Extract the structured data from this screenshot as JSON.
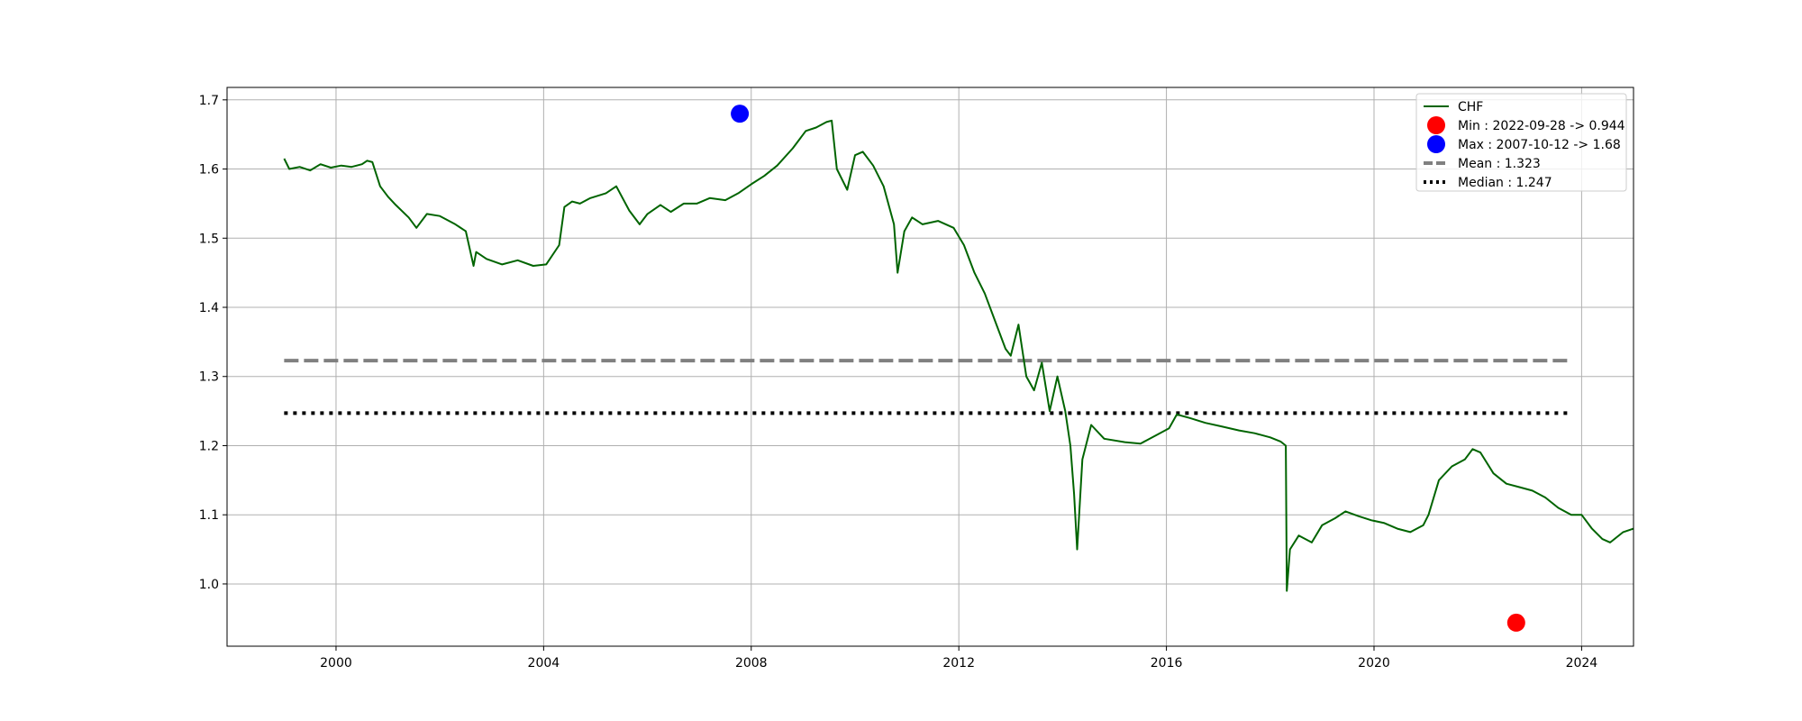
{
  "chart_data": {
    "type": "line",
    "title": "",
    "xlabel": "",
    "ylabel": "",
    "xlim": [
      1997.9,
      2025.0
    ],
    "ylim": [
      0.91,
      1.718
    ],
    "grid": true,
    "legend_position": "top-right",
    "x_ticks": [
      2000,
      2004,
      2008,
      2012,
      2016,
      2020,
      2024
    ],
    "y_ticks": [
      1.0,
      1.1,
      1.2,
      1.3,
      1.4,
      1.5,
      1.6,
      1.7
    ],
    "x_tick_labels": [
      "2000",
      "2004",
      "2008",
      "2012",
      "2016",
      "2020",
      "2024"
    ],
    "y_tick_labels": [
      "1.0",
      "1.1",
      "1.2",
      "1.3",
      "1.4",
      "1.5",
      "1.6",
      "1.7"
    ],
    "series": [
      {
        "name": "CHF",
        "color": "#006400",
        "points": [
          [
            1999.0,
            1.615
          ],
          [
            1999.1,
            1.6
          ],
          [
            1999.3,
            1.603
          ],
          [
            1999.5,
            1.598
          ],
          [
            1999.7,
            1.607
          ],
          [
            1999.9,
            1.602
          ],
          [
            2000.1,
            1.605
          ],
          [
            2000.3,
            1.603
          ],
          [
            2000.5,
            1.607
          ],
          [
            2000.6,
            1.612
          ],
          [
            2000.7,
            1.61
          ],
          [
            2000.85,
            1.575
          ],
          [
            2001.0,
            1.56
          ],
          [
            2001.15,
            1.548
          ],
          [
            2001.4,
            1.53
          ],
          [
            2001.55,
            1.515
          ],
          [
            2001.75,
            1.535
          ],
          [
            2002.0,
            1.532
          ],
          [
            2002.3,
            1.52
          ],
          [
            2002.5,
            1.51
          ],
          [
            2002.65,
            1.46
          ],
          [
            2002.7,
            1.48
          ],
          [
            2002.9,
            1.47
          ],
          [
            2003.2,
            1.462
          ],
          [
            2003.5,
            1.468
          ],
          [
            2003.8,
            1.46
          ],
          [
            2004.05,
            1.462
          ],
          [
            2004.3,
            1.49
          ],
          [
            2004.4,
            1.545
          ],
          [
            2004.55,
            1.553
          ],
          [
            2004.7,
            1.55
          ],
          [
            2004.9,
            1.558
          ],
          [
            2005.2,
            1.565
          ],
          [
            2005.4,
            1.575
          ],
          [
            2005.65,
            1.54
          ],
          [
            2005.85,
            1.52
          ],
          [
            2006.0,
            1.535
          ],
          [
            2006.25,
            1.548
          ],
          [
            2006.45,
            1.538
          ],
          [
            2006.7,
            1.55
          ],
          [
            2006.95,
            1.55
          ],
          [
            2007.2,
            1.558
          ],
          [
            2007.5,
            1.555
          ],
          [
            2007.75,
            1.565
          ],
          [
            2008.0,
            1.578
          ],
          [
            2008.25,
            1.59
          ],
          [
            2008.5,
            1.605
          ],
          [
            2008.8,
            1.63
          ],
          [
            2009.05,
            1.655
          ],
          [
            2009.25,
            1.66
          ],
          [
            2009.45,
            1.668
          ],
          [
            2009.55,
            1.67
          ],
          [
            2009.65,
            1.6
          ],
          [
            2009.85,
            1.57
          ],
          [
            2010.0,
            1.62
          ],
          [
            2010.15,
            1.625
          ],
          [
            2010.35,
            1.605
          ],
          [
            2010.55,
            1.575
          ],
          [
            2010.75,
            1.52
          ],
          [
            2010.82,
            1.45
          ],
          [
            2010.95,
            1.51
          ],
          [
            2011.1,
            1.53
          ],
          [
            2011.3,
            1.52
          ],
          [
            2011.6,
            1.525
          ],
          [
            2011.9,
            1.515
          ],
          [
            2012.1,
            1.49
          ],
          [
            2012.3,
            1.45
          ],
          [
            2012.5,
            1.42
          ],
          [
            2012.7,
            1.38
          ],
          [
            2012.9,
            1.34
          ],
          [
            2013.0,
            1.33
          ],
          [
            2013.15,
            1.375
          ],
          [
            2013.3,
            1.3
          ],
          [
            2013.45,
            1.28
          ],
          [
            2013.6,
            1.32
          ],
          [
            2013.75,
            1.25
          ],
          [
            2013.9,
            1.3
          ],
          [
            2014.05,
            1.25
          ],
          [
            2014.15,
            1.2
          ],
          [
            2014.22,
            1.13
          ],
          [
            2014.28,
            1.05
          ],
          [
            2014.38,
            1.18
          ],
          [
            2014.55,
            1.23
          ],
          [
            2014.8,
            1.21
          ],
          [
            2015.2,
            1.205
          ],
          [
            2015.5,
            1.203
          ],
          [
            2015.8,
            1.215
          ],
          [
            2016.05,
            1.225
          ],
          [
            2016.2,
            1.245
          ],
          [
            2016.45,
            1.24
          ],
          [
            2016.75,
            1.233
          ],
          [
            2017.05,
            1.228
          ],
          [
            2017.4,
            1.222
          ],
          [
            2017.7,
            1.218
          ],
          [
            2018.0,
            1.212
          ],
          [
            2018.2,
            1.206
          ],
          [
            2018.3,
            1.2
          ],
          [
            2018.32,
            0.99
          ],
          [
            2018.38,
            1.05
          ],
          [
            2018.55,
            1.07
          ],
          [
            2018.8,
            1.06
          ],
          [
            2019.0,
            1.085
          ],
          [
            2019.25,
            1.095
          ],
          [
            2019.45,
            1.105
          ],
          [
            2019.7,
            1.098
          ],
          [
            2019.95,
            1.092
          ],
          [
            2020.2,
            1.088
          ],
          [
            2020.45,
            1.08
          ],
          [
            2020.7,
            1.075
          ],
          [
            2020.95,
            1.085
          ],
          [
            2021.05,
            1.1
          ],
          [
            2021.25,
            1.15
          ],
          [
            2021.5,
            1.17
          ],
          [
            2021.75,
            1.18
          ],
          [
            2021.9,
            1.195
          ],
          [
            2022.05,
            1.19
          ],
          [
            2022.3,
            1.16
          ],
          [
            2022.55,
            1.145
          ],
          [
            2022.8,
            1.14
          ],
          [
            2023.05,
            1.135
          ],
          [
            2023.3,
            1.125
          ],
          [
            2023.55,
            1.11
          ],
          [
            2023.8,
            1.1
          ],
          [
            2024.0,
            1.1
          ],
          [
            2024.2,
            1.08
          ],
          [
            2024.4,
            1.065
          ],
          [
            2024.55,
            1.06
          ],
          [
            2024.8,
            1.075
          ],
          [
            2025.0,
            1.08
          ]
        ]
      }
    ],
    "markers": [
      {
        "name": "Min : 2022-09-28 -> 0.944",
        "x": 2022.74,
        "y": 0.944,
        "color": "#ff0000"
      },
      {
        "name": "Max : 2007-10-12 -> 1.68",
        "x": 2007.78,
        "y": 1.68,
        "color": "#0000ff"
      }
    ],
    "reference_lines": [
      {
        "name": "Mean : 1.323",
        "y": 1.323,
        "x_range": [
          1999.0,
          2023.8
        ],
        "color": "#808080",
        "style": "dashed"
      },
      {
        "name": "Median : 1.247",
        "y": 1.247,
        "x_range": [
          1999.0,
          2023.8
        ],
        "color": "#000000",
        "style": "dotted"
      }
    ]
  }
}
